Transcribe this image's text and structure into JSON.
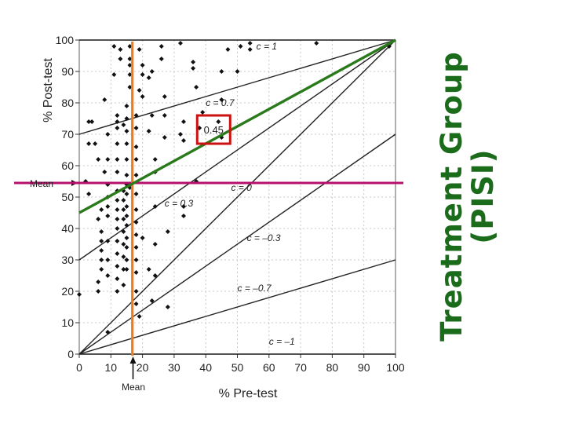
{
  "slide": {
    "title_line1": "Treatment Group",
    "title_line2": "(PISI)",
    "title_color": "#1a6b1a"
  },
  "chart_data": {
    "type": "scatter",
    "xlabel": "% Pre-test",
    "ylabel": "% Post-test",
    "xlim": [
      0,
      100
    ],
    "ylim": [
      0,
      100
    ],
    "x_ticks": [
      0,
      10,
      20,
      30,
      40,
      50,
      60,
      70,
      80,
      90,
      100
    ],
    "y_ticks": [
      0,
      10,
      20,
      30,
      40,
      50,
      60,
      70,
      80,
      90,
      100
    ],
    "tick_labels": [
      "0",
      "10",
      "20",
      "30",
      "40",
      "50",
      "60",
      "70",
      "80",
      "90",
      "100"
    ],
    "grid": true,
    "contour_lines": [
      {
        "label": "c = 1",
        "c": 1,
        "label_at": [
          56,
          97
        ]
      },
      {
        "label": "c = 0.7",
        "c": 0.7,
        "label_at": [
          40,
          79
        ]
      },
      {
        "label": "c = 0.3",
        "c": 0.3,
        "label_at": [
          27,
          47
        ]
      },
      {
        "label": "c = 0",
        "c": 0,
        "label_at": [
          48,
          52
        ]
      },
      {
        "label": "c = –0.3",
        "c": -0.3,
        "label_at": [
          53,
          36
        ]
      },
      {
        "label": "c = –0.7",
        "c": -0.7,
        "label_at": [
          50,
          20
        ]
      },
      {
        "label": "c = –1",
        "c": -1,
        "label_at": [
          60,
          3
        ]
      }
    ],
    "mean_marks": {
      "pre_label": "Mean",
      "post_label": "Mean",
      "pre_mean": 17,
      "post_mean": 54.5
    },
    "overlay": {
      "vertical_line_x": 16.8,
      "vertical_color": "#ee7d22",
      "horizontal_line_y": 54.5,
      "horizontal_color": "#b5106c",
      "fit_line": [
        [
          0,
          45
        ],
        [
          100,
          100
        ]
      ],
      "fit_color": "#2a7a1c",
      "box_label": "0.45",
      "box_center": [
        42.5,
        71.5
      ],
      "box_color": "#cc1111"
    },
    "points": [
      [
        0,
        19
      ],
      [
        3,
        67
      ],
      [
        2,
        55
      ],
      [
        3,
        51
      ],
      [
        4,
        74
      ],
      [
        5,
        67
      ],
      [
        6,
        62
      ],
      [
        7,
        46
      ],
      [
        7,
        39
      ],
      [
        7,
        36
      ],
      [
        7,
        33
      ],
      [
        7,
        30
      ],
      [
        7,
        27
      ],
      [
        6,
        23
      ],
      [
        6,
        20
      ],
      [
        8,
        81
      ],
      [
        6,
        43
      ],
      [
        9,
        70
      ],
      [
        9,
        62
      ],
      [
        9,
        54
      ],
      [
        9,
        50
      ],
      [
        9,
        47
      ],
      [
        9,
        44
      ],
      [
        9,
        36
      ],
      [
        9,
        30
      ],
      [
        9,
        25
      ],
      [
        9,
        7
      ],
      [
        8,
        58
      ],
      [
        12,
        76
      ],
      [
        12,
        74
      ],
      [
        12,
        72
      ],
      [
        12,
        67
      ],
      [
        12,
        62
      ],
      [
        12,
        58
      ],
      [
        12,
        52
      ],
      [
        12,
        49
      ],
      [
        12,
        46
      ],
      [
        12,
        43
      ],
      [
        12,
        40
      ],
      [
        12,
        36
      ],
      [
        12,
        32
      ],
      [
        12,
        28
      ],
      [
        12,
        24
      ],
      [
        12,
        20
      ],
      [
        14,
        73
      ],
      [
        14,
        52
      ],
      [
        14,
        49
      ],
      [
        14,
        46
      ],
      [
        14,
        43
      ],
      [
        14,
        39
      ],
      [
        14,
        35
      ],
      [
        14,
        31
      ],
      [
        14,
        27
      ],
      [
        14,
        22
      ],
      [
        15,
        79
      ],
      [
        15,
        75
      ],
      [
        15,
        71
      ],
      [
        15,
        67
      ],
      [
        15,
        62
      ],
      [
        15,
        57
      ],
      [
        15,
        54
      ],
      [
        15,
        51
      ],
      [
        15,
        47
      ],
      [
        15,
        44
      ],
      [
        15,
        41
      ],
      [
        15,
        37
      ],
      [
        15,
        34
      ],
      [
        15,
        30
      ],
      [
        15,
        27
      ],
      [
        16,
        94
      ],
      [
        16,
        89
      ],
      [
        16,
        85
      ],
      [
        18,
        76
      ],
      [
        18,
        72
      ],
      [
        18,
        66
      ],
      [
        18,
        62
      ],
      [
        18,
        57
      ],
      [
        18,
        51
      ],
      [
        18,
        46
      ],
      [
        18,
        42
      ],
      [
        18,
        38
      ],
      [
        18,
        34
      ],
      [
        18,
        30
      ],
      [
        18,
        26
      ],
      [
        18,
        20
      ],
      [
        18,
        16
      ],
      [
        11,
        98
      ],
      [
        13,
        97
      ],
      [
        13,
        94
      ],
      [
        16,
        98
      ],
      [
        16,
        92
      ],
      [
        19,
        97
      ],
      [
        20,
        92
      ],
      [
        20,
        89
      ],
      [
        20,
        82
      ],
      [
        19,
        84
      ],
      [
        22,
        88
      ],
      [
        22,
        71
      ],
      [
        23,
        76
      ],
      [
        23,
        90
      ],
      [
        24,
        62
      ],
      [
        24,
        58
      ],
      [
        24,
        47
      ],
      [
        24,
        35
      ],
      [
        24,
        25
      ],
      [
        26,
        98
      ],
      [
        26,
        94
      ],
      [
        27,
        82
      ],
      [
        27,
        76
      ],
      [
        27,
        69
      ],
      [
        28,
        39
      ],
      [
        28,
        15
      ],
      [
        19,
        12
      ],
      [
        22,
        27
      ],
      [
        23,
        17
      ],
      [
        32,
        70
      ],
      [
        32,
        99
      ],
      [
        33,
        68
      ],
      [
        33,
        47
      ],
      [
        33,
        44
      ],
      [
        36,
        93
      ],
      [
        36,
        91
      ],
      [
        37,
        85
      ],
      [
        37,
        55
      ],
      [
        38,
        72
      ],
      [
        39,
        77
      ],
      [
        44,
        74
      ],
      [
        45,
        90
      ],
      [
        45,
        81
      ],
      [
        45,
        69
      ],
      [
        47,
        97
      ],
      [
        50,
        90
      ],
      [
        51,
        98
      ],
      [
        54,
        97
      ],
      [
        33,
        74
      ],
      [
        54,
        99
      ],
      [
        75,
        99
      ],
      [
        98,
        98
      ],
      [
        3,
        74
      ],
      [
        11,
        89
      ],
      [
        16,
        53
      ],
      [
        20,
        37
      ]
    ]
  }
}
